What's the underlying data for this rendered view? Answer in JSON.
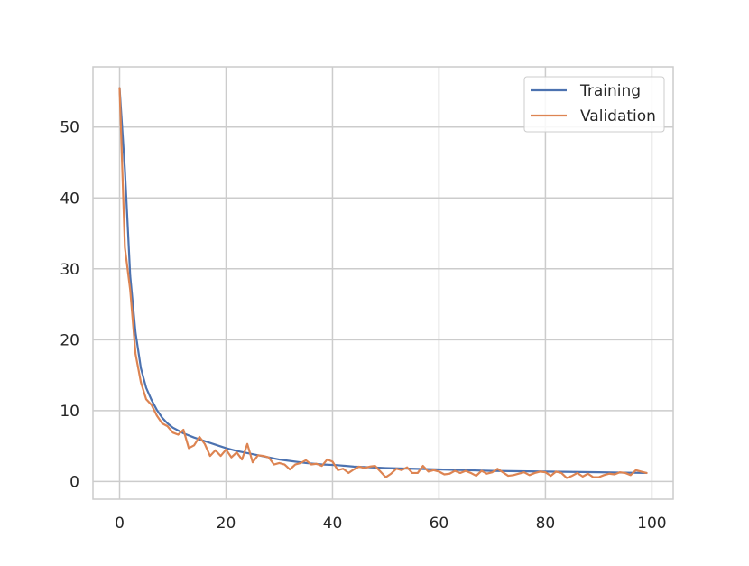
{
  "chart_data": {
    "type": "line",
    "title": "",
    "xlabel": "",
    "ylabel": "",
    "xlim": [
      -5,
      104
    ],
    "ylim": [
      -2.5,
      58.5
    ],
    "x_ticks": [
      0,
      20,
      40,
      60,
      80,
      100
    ],
    "y_ticks": [
      0,
      10,
      20,
      30,
      40,
      50
    ],
    "x_tick_labels": [
      "0",
      "20",
      "40",
      "60",
      "80",
      "100"
    ],
    "y_tick_labels": [
      "0",
      "10",
      "20",
      "30",
      "40",
      "50"
    ],
    "grid": true,
    "legend": "top-right",
    "legend_items": [
      {
        "label": "Training",
        "color": "#4c72b0"
      },
      {
        "label": "Validation",
        "color": "#dd8452"
      }
    ],
    "series": [
      {
        "name": "Training",
        "color": "#4c72b0",
        "x": [
          0,
          1,
          2,
          3,
          4,
          5,
          6,
          7,
          8,
          9,
          10,
          12,
          14,
          16,
          18,
          20,
          22,
          24,
          26,
          28,
          30,
          32,
          35,
          38,
          41,
          44,
          47,
          50,
          55,
          60,
          65,
          70,
          75,
          80,
          85,
          90,
          95,
          99
        ],
        "values": [
          55.5,
          44.0,
          29.0,
          21.0,
          16.0,
          13.2,
          11.5,
          10.1,
          9.0,
          8.2,
          7.6,
          6.8,
          6.2,
          5.7,
          5.2,
          4.7,
          4.3,
          4.0,
          3.7,
          3.4,
          3.1,
          2.9,
          2.6,
          2.4,
          2.3,
          2.1,
          2.0,
          1.9,
          1.8,
          1.7,
          1.6,
          1.5,
          1.45,
          1.4,
          1.35,
          1.3,
          1.25,
          1.2
        ]
      },
      {
        "name": "Validation",
        "color": "#dd8452",
        "x": [
          0,
          1,
          2,
          3,
          4,
          5,
          6,
          7,
          8,
          9,
          10,
          11,
          12,
          13,
          14,
          15,
          16,
          17,
          18,
          19,
          20,
          21,
          22,
          23,
          24,
          25,
          26,
          27,
          28,
          29,
          30,
          31,
          32,
          33,
          34,
          35,
          36,
          37,
          38,
          39,
          40,
          41,
          42,
          43,
          44,
          45,
          46,
          47,
          48,
          49,
          50,
          51,
          52,
          53,
          54,
          55,
          56,
          57,
          58,
          59,
          60,
          61,
          62,
          63,
          64,
          65,
          66,
          67,
          68,
          69,
          70,
          71,
          72,
          73,
          74,
          75,
          76,
          77,
          78,
          79,
          80,
          81,
          82,
          83,
          84,
          85,
          86,
          87,
          88,
          89,
          90,
          91,
          92,
          93,
          94,
          95,
          96,
          97,
          98,
          99
        ],
        "values": [
          55.5,
          33.0,
          27.0,
          18.0,
          14.0,
          11.6,
          10.8,
          9.3,
          8.2,
          7.8,
          6.9,
          6.6,
          7.3,
          4.7,
          5.1,
          6.3,
          5.3,
          3.6,
          4.4,
          3.6,
          4.5,
          3.4,
          4.1,
          3.1,
          5.3,
          2.7,
          3.7,
          3.6,
          3.4,
          2.4,
          2.6,
          2.4,
          1.7,
          2.4,
          2.6,
          3.0,
          2.4,
          2.5,
          2.2,
          3.1,
          2.8,
          1.6,
          1.8,
          1.2,
          1.7,
          2.1,
          1.9,
          2.1,
          2.2,
          1.4,
          0.6,
          1.1,
          1.8,
          1.6,
          2.0,
          1.2,
          1.2,
          2.2,
          1.4,
          1.6,
          1.4,
          1.0,
          1.1,
          1.5,
          1.2,
          1.5,
          1.2,
          0.8,
          1.5,
          1.1,
          1.3,
          1.8,
          1.3,
          0.8,
          0.9,
          1.1,
          1.3,
          0.9,
          1.2,
          1.4,
          1.3,
          0.8,
          1.4,
          1.2,
          0.5,
          0.8,
          1.2,
          0.7,
          1.1,
          0.6,
          0.6,
          0.9,
          1.1,
          1.0,
          1.3,
          1.2,
          0.9,
          1.6,
          1.4,
          1.2
        ]
      }
    ]
  }
}
